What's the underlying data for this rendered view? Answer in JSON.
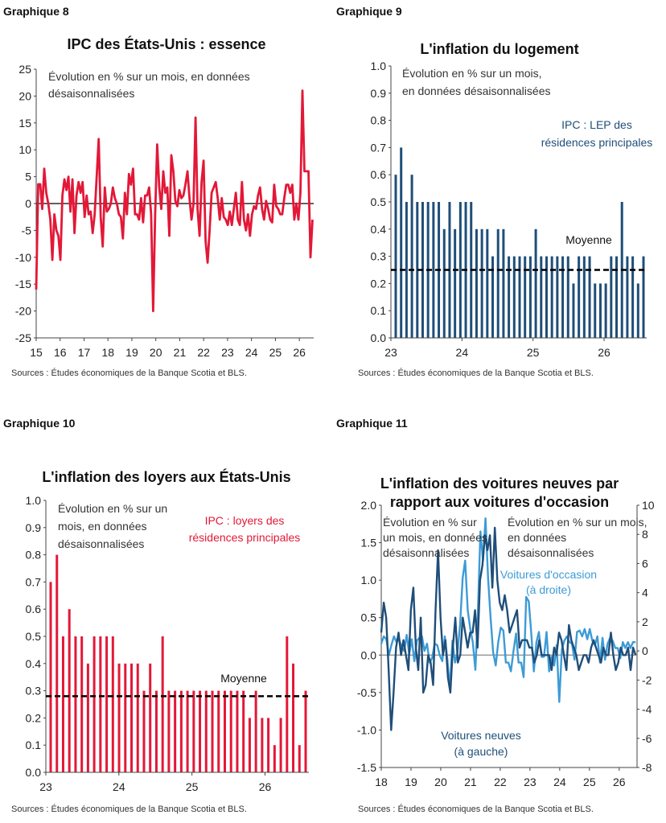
{
  "colors": {
    "red": "#e31837",
    "navy": "#1f4e79",
    "lightblue": "#3d9bd6",
    "black": "#111111"
  },
  "charts": [
    {
      "label": "Graphique 8",
      "title": "IPC des États-Unis : essence",
      "source": "Sources : Études économiques de la Banque Scotia et BLS.",
      "annotations": [
        "Évolution en % sur un mois, en données",
        "désaisonnalisées"
      ]
    },
    {
      "label": "Graphique 9",
      "title": "L'inflation du logement",
      "source": "Sources : Études économiques de la Banque Scotia et BLS.",
      "annotations": [
        "Évolution en % sur un mois,",
        "en données désaisonnalisées",
        "IPC : LEP des",
        "résidences principales",
        "Moyenne"
      ]
    },
    {
      "label": "Graphique 10",
      "title": "L'inflation des loyers aux États-Unis",
      "source": "Sources : Études économiques de la Banque Scotia et BLS.",
      "annotations": [
        "Évolution en % sur un",
        "mois, en données",
        "désaisonnalisées",
        "IPC : loyers des",
        "résidences principales",
        "Moyenne"
      ]
    },
    {
      "label": "Graphique 11",
      "title": "L'inflation des voitures neuves par\nrapport aux voitures d'occasion",
      "source": "Sources : Études économiques de la Banque Scotia et BLS.",
      "annotations": [
        "Évolution en % sur",
        "un mois, en données",
        "désaisonnalisées",
        "Évolution en % sur un mois,",
        "en données",
        "désaisonnalisées",
        "Voitures d'occasion",
        "(à droite)",
        "Voitures neuves",
        "(à gauche)"
      ]
    }
  ],
  "chart_data": [
    {
      "type": "line",
      "ylim": [
        -25,
        25
      ],
      "yticks": [
        25,
        20,
        15,
        10,
        5,
        0,
        -5,
        -10,
        -15,
        -20,
        -25
      ],
      "x_range": [
        15,
        26.6
      ],
      "xticks": [
        "15",
        "16",
        "17",
        "18",
        "19",
        "20",
        "21",
        "22",
        "23",
        "24",
        "25",
        "26"
      ],
      "grid": false,
      "series": [
        {
          "values": [
            -16,
            3.6,
            3.6,
            -1,
            6.5,
            2,
            0,
            -3,
            -10.5,
            -2,
            -5,
            -6,
            -10.5,
            1.5,
            4.5,
            2.5,
            5,
            -1.5,
            4.5,
            -5.5,
            1.5,
            4,
            2,
            4,
            -2.5,
            1.5,
            -2,
            -1.5,
            -5.5,
            -2,
            5,
            12,
            -2.5,
            -8,
            3,
            -1.5,
            -1,
            0,
            3,
            1,
            0,
            -2,
            -2.5,
            -6.5,
            2,
            -2,
            5.5,
            3.5,
            6.5,
            -2,
            -2,
            -3,
            1,
            -3.5,
            1.5,
            1.5,
            3,
            -2,
            -20,
            -2,
            11,
            3,
            -1,
            6,
            2,
            3,
            -6,
            9,
            6,
            0.5,
            -0.5,
            2.5,
            1,
            1.5,
            3.5,
            6,
            1,
            -3,
            0,
            16,
            -1,
            -6,
            4,
            8,
            -7,
            -11,
            -5,
            2,
            3,
            4,
            1,
            -3,
            1,
            -2.5,
            -3,
            -4,
            -1.5,
            -4,
            -1,
            2,
            -3,
            -4,
            4,
            -3,
            -5,
            -2,
            -6,
            -2,
            -0.5,
            -1,
            1.5,
            3,
            -1,
            -3,
            0.5,
            -1,
            -3,
            -3.5,
            3.5,
            -0.5,
            -1,
            -2,
            -2,
            1,
            3.5,
            3.5,
            2,
            3.5,
            -3,
            0,
            -3,
            2,
            21,
            6,
            6,
            6,
            -10,
            -3
          ]
        }
      ]
    },
    {
      "type": "bar",
      "ylim": [
        0,
        1.0
      ],
      "yticks": [
        "1.0",
        "0.9",
        "0.8",
        "0.7",
        "0.6",
        "0.5",
        "0.4",
        "0.3",
        "0.2",
        "0.1",
        "0.0"
      ],
      "x_range": [
        23,
        26.6
      ],
      "xticks": [
        "23",
        "24",
        "25",
        "26"
      ],
      "values": [
        0.6,
        0.7,
        0.5,
        0.6,
        0.5,
        0.5,
        0.5,
        0.5,
        0.5,
        0.4,
        0.5,
        0.4,
        0.5,
        0.5,
        0.5,
        0.4,
        0.4,
        0.4,
        0.3,
        0.4,
        0.4,
        0.3,
        0.3,
        0.3,
        0.3,
        0.3,
        0.4,
        0.3,
        0.3,
        0.3,
        0.3,
        0.3,
        0.3,
        0.2,
        0.3,
        0.3,
        0.3,
        0.2,
        0.2,
        0.2,
        0.3,
        0.3,
        0.5,
        0.3,
        0.3,
        0.2,
        0.3
      ],
      "reference_line": {
        "label": "Moyenne",
        "value": 0.25
      },
      "series": [
        {
          "name": "IPC : LEP des résidences principales"
        }
      ]
    },
    {
      "type": "bar",
      "ylim": [
        0,
        1.0
      ],
      "yticks": [
        "1.0",
        "0.9",
        "0.8",
        "0.7",
        "0.6",
        "0.5",
        "0.4",
        "0.3",
        "0.2",
        "0.1",
        "0.0"
      ],
      "x_range": [
        23,
        26.6
      ],
      "xticks": [
        "23",
        "24",
        "25",
        "26"
      ],
      "values": [
        0.7,
        0.8,
        0.5,
        0.6,
        0.5,
        0.5,
        0.4,
        0.5,
        0.5,
        0.5,
        0.5,
        0.4,
        0.4,
        0.4,
        0.4,
        0.3,
        0.4,
        0.3,
        0.5,
        0.3,
        0.3,
        0.3,
        0.3,
        0.3,
        0.3,
        0.3,
        0.3,
        0.3,
        0.3,
        0.3,
        0.3,
        0.3,
        0.2,
        0.3,
        0.2,
        0.2,
        0.1,
        0.2,
        0.5,
        0.4,
        0.1,
        0.3
      ],
      "reference_line": {
        "label": "Moyenne",
        "value": 0.28
      },
      "series": [
        {
          "name": "IPC : loyers des résidences principales"
        }
      ]
    },
    {
      "type": "line",
      "ylim_left": [
        -1.5,
        2.0
      ],
      "ylim_right": [
        -8,
        10
      ],
      "yticks_left": [
        "2.0",
        "1.5",
        "1.0",
        "0.5",
        "0.0",
        "-0.5",
        "-1.0",
        "-1.5"
      ],
      "yticks_right": [
        "10",
        "8",
        "6",
        "4",
        "2",
        "0",
        "-2",
        "-4",
        "-6",
        "-8"
      ],
      "x_range": [
        18,
        26.6
      ],
      "xticks": [
        "18",
        "19",
        "20",
        "21",
        "22",
        "23",
        "24",
        "25",
        "26"
      ],
      "series": [
        {
          "name": "Voitures neuves",
          "axis": "left",
          "values": [
            0.3,
            0.7,
            0.5,
            -0.2,
            -1.0,
            -0.5,
            0.1,
            0.3,
            0.0,
            0.2,
            0.0,
            -0.2,
            0.6,
            0.9,
            0.1,
            -0.2,
            0.5,
            -0.5,
            -0.4,
            0.0,
            -0.1,
            -0.4,
            0.6,
            1.4,
            0.5,
            0.0,
            0.2,
            -0.3,
            -0.5,
            0.1,
            0.5,
            -0.1,
            0.0,
            0.5,
            0.3,
            0.1,
            0.3,
            0.3,
            0.6,
            0.1,
            1.0,
            1.2,
            1.6,
            1.4,
            1.6,
            0.9,
            1.7,
            1.0,
            0.7,
            0.6,
            0.8,
            0.6,
            0.3,
            0.4,
            0.5,
            0.6,
            0.1,
            0.2,
            0.2,
            0.2,
            0.1,
            0.1,
            -0.1,
            0.0,
            0.2,
            0.0,
            0.0,
            0.0,
            0.0,
            -0.2,
            0.1,
            0.0,
            0.3,
            0.2,
            0.0,
            -0.2,
            0.4,
            0.2,
            0.1,
            0.0,
            -0.2,
            -0.1,
            0.0,
            0.0,
            -0.1,
            0.1,
            0.2,
            0.1,
            0.0,
            -0.1,
            0.1,
            0.0,
            0.0,
            0.3,
            0.0,
            -0.2,
            -0.1,
            0.1,
            0.0,
            0.0,
            0.1,
            -0.2,
            0.1,
            0.0
          ]
        },
        {
          "name": "Voitures d'occasion",
          "axis": "right",
          "values": [
            0.5,
            1.0,
            0.8,
            -0.3,
            0.4,
            1.0,
            0.6,
            0.8,
            0.3,
            0.0,
            1.1,
            -0.2,
            0.8,
            -0.7,
            0.7,
            0.9,
            1.0,
            0.0,
            0.5,
            -0.8,
            -0.5,
            0.5,
            0.4,
            -0.3,
            -0.7,
            1.0,
            -0.6,
            -2.6,
            0.7,
            -0.8,
            -0.1,
            1.8,
            5.0,
            6.2,
            2.8,
            1.5,
            0.6,
            -1.3,
            2.6,
            8.2,
            6.2,
            9.1,
            5.0,
            2.3,
            -0.1,
            -1.0,
            0.6,
            1.6,
            1.4,
            -0.8,
            -0.8,
            -1.4,
            0.0,
            1.2,
            -0.8,
            -0.8,
            -1.8,
            3.7,
            3.4,
            1.2,
            -1.4,
            0.6,
            1.3,
            -0.4,
            -0.4,
            1.3,
            -1.4,
            -0.4,
            -1.0,
            0.4,
            -3.5,
            0.1,
            0.7,
            1.0,
            0.6,
            0.5,
            -0.6,
            1.3,
            1.4,
            1.0,
            1.5,
            0.8,
            1.5,
            0.7,
            0.4,
            1.0,
            -0.8,
            0.9,
            -0.6,
            0.5,
            0.9,
            0.7,
            0.2,
            0.2,
            -0.5,
            0.6,
            0.2,
            0.6,
            0.2,
            0.6,
            0.6
          ]
        }
      ]
    }
  ]
}
